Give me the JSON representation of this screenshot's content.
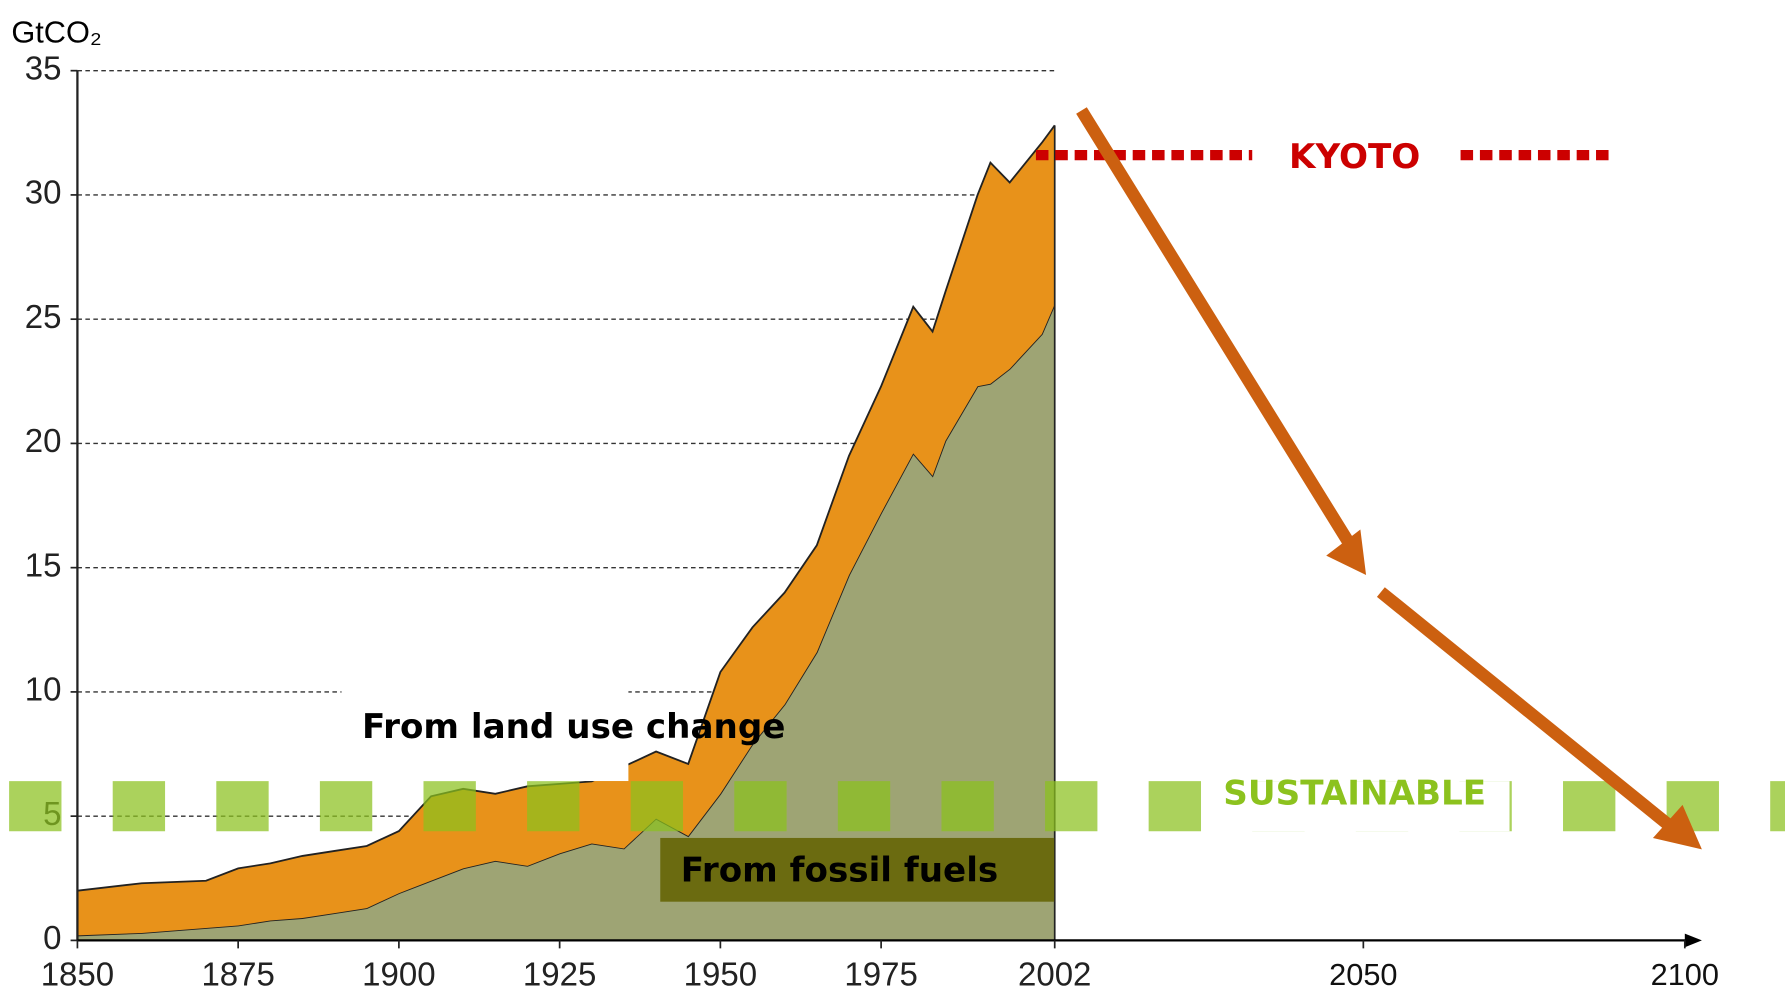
{
  "chart_data": {
    "type": "stacked_area",
    "y_axis_label": "GtCO₂",
    "x": [
      1850,
      1860,
      1870,
      1875,
      1880,
      1885,
      1890,
      1895,
      1900,
      1905,
      1910,
      1915,
      1920,
      1925,
      1930,
      1935,
      1940,
      1945,
      1950,
      1955,
      1960,
      1965,
      1970,
      1975,
      1980,
      1983,
      1985,
      1990,
      1992,
      1995,
      2000,
      2002
    ],
    "series": [
      {
        "name": "From fossil fuels",
        "color": "#9ea474",
        "values": [
          0.2,
          0.3,
          0.5,
          0.6,
          0.8,
          0.9,
          1.1,
          1.3,
          1.9,
          2.4,
          2.9,
          3.2,
          3.0,
          3.5,
          3.9,
          3.7,
          4.9,
          4.2,
          5.9,
          7.9,
          9.5,
          11.6,
          14.7,
          17.2,
          19.6,
          18.7,
          20.1,
          22.3,
          22.4,
          23.0,
          24.4,
          25.6
        ]
      },
      {
        "name": "From land use change",
        "color": "#e8921a",
        "values": [
          1.8,
          2.0,
          1.9,
          2.3,
          2.3,
          2.5,
          2.5,
          2.5,
          2.5,
          3.4,
          3.2,
          2.7,
          3.2,
          2.8,
          2.5,
          3.3,
          2.7,
          2.9,
          4.9,
          4.7,
          4.5,
          4.3,
          4.8,
          5.1,
          5.9,
          5.8,
          6.0,
          7.7,
          8.9,
          7.5,
          7.7,
          7.2
        ]
      }
    ],
    "xlim": [
      1850,
      2100
    ],
    "xticks": [
      1850,
      1875,
      1900,
      1925,
      1950,
      1975,
      2002,
      2050,
      2100
    ],
    "ylim": [
      0,
      35
    ],
    "yticks": [
      0,
      5,
      10,
      15,
      20,
      25,
      30,
      35
    ],
    "grid": true,
    "reference_lines": [
      {
        "label": "KYOTO",
        "value": 31.6,
        "color": "#cc0000"
      },
      {
        "label": "SUSTAINABLE",
        "value": 5.4,
        "color": "#8cc21e"
      }
    ]
  }
}
